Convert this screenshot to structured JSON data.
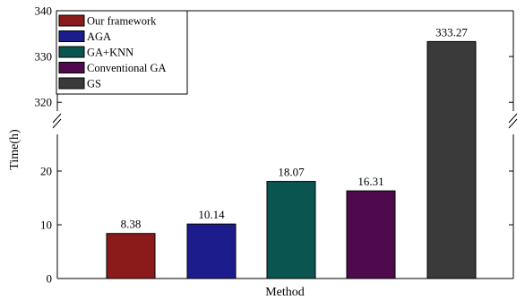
{
  "chart_data": {
    "type": "bar",
    "categories": [
      "Our framework",
      "AGA",
      "GA+KNN",
      "Conventional GA",
      "GS"
    ],
    "values": [
      8.38,
      10.14,
      18.07,
      16.31,
      333.27
    ],
    "data_labels": [
      "8.38",
      "10.14",
      "18.07",
      "16.31",
      "333.27"
    ],
    "colors": [
      "#8b1a1a",
      "#1c1c8c",
      "#0b5551",
      "#4f0a4e",
      "#3a3a3a"
    ],
    "xlabel": "Method",
    "ylabel": "Time(h)",
    "broken_y_axis": true,
    "y_segments": [
      {
        "range": [
          0,
          20
        ],
        "ticks": [
          0,
          10,
          20
        ],
        "tick_labels": [
          "0",
          "10",
          "20"
        ]
      },
      {
        "range": [
          313,
          340
        ],
        "ticks": [
          320,
          330,
          340
        ],
        "tick_labels": [
          "320",
          "330",
          "340"
        ]
      }
    ],
    "grid": false,
    "legend_placement": "top-left",
    "legend": [
      "Our framework",
      "AGA",
      "GA+KNN",
      "Conventional GA",
      "GS"
    ]
  }
}
